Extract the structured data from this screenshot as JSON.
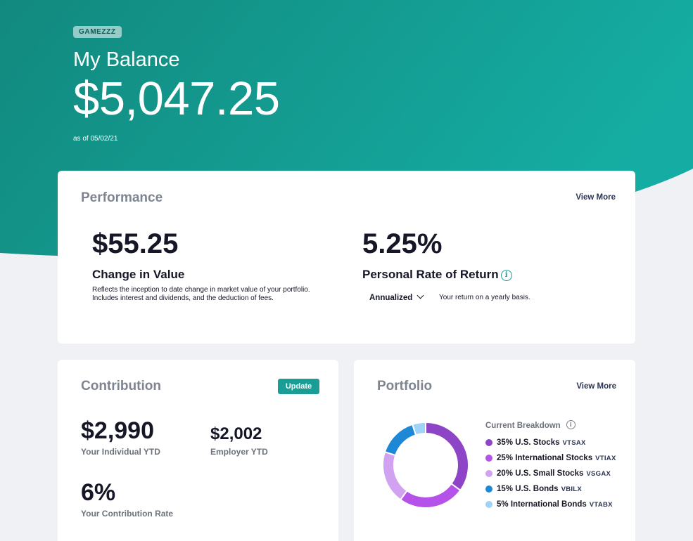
{
  "hero": {
    "badge": "GAMEZZZ",
    "title": "My Balance",
    "amount": "$5,047.25",
    "as_of": "as of 05/02/21",
    "gradient_start": "#12897e",
    "gradient_end": "#15ada3"
  },
  "performance": {
    "title": "Performance",
    "view_more": "View More",
    "change": {
      "amount": "$55.25",
      "label": "Change in Value",
      "description": "Reflects the inception to date change in market value of your portfolio. Includes interest and dividends, and the deduction of fees."
    },
    "rate": {
      "amount": "5.25%",
      "label": "Personal Rate of Return",
      "dropdown_value": "Annualized",
      "description": "Your return on a yearly basis."
    }
  },
  "contribution": {
    "title": "Contribution",
    "update_label": "Update",
    "individual_amount": "$2,990",
    "individual_label": "Your Individual YTD",
    "employer_amount": "$2,002",
    "employer_label": "Employer YTD",
    "rate_amount": "6%",
    "rate_label": "Your Contribution Rate"
  },
  "portfolio": {
    "title": "Portfolio",
    "view_more": "View More",
    "breakdown_label": "Current Breakdown",
    "items": [
      {
        "label": "35% U.S. Stocks",
        "ticker": "VTSAX",
        "percent": 35,
        "color": "#8e44c6"
      },
      {
        "label": "25% International Stocks",
        "ticker": "VTIAX",
        "percent": 25,
        "color": "#b452ea"
      },
      {
        "label": "20% U.S. Small Stocks",
        "ticker": "VSGAX",
        "percent": 20,
        "color": "#d1a2f2"
      },
      {
        "label": "15% U.S. Bonds",
        "ticker": "VBILX",
        "percent": 15,
        "color": "#1f88d6"
      },
      {
        "label": "5% International Bonds",
        "ticker": "VTABX",
        "percent": 5,
        "color": "#9fd3f7"
      }
    ]
  },
  "colors": {
    "accent": "#1a9d95",
    "page_background": "#f0f1f5"
  }
}
